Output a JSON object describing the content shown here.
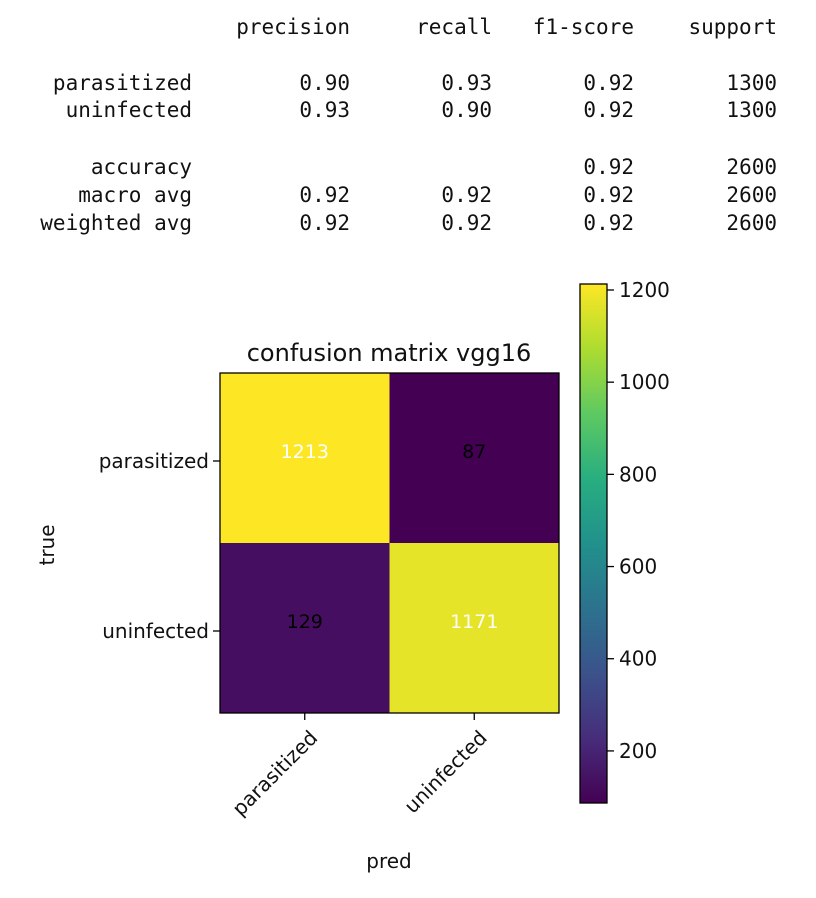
{
  "report": {
    "headers": [
      "precision",
      "recall",
      "f1-score",
      "support"
    ],
    "rows": [
      {
        "label": "parasitized",
        "values": [
          "0.90",
          "0.93",
          "0.92",
          "1300"
        ]
      },
      {
        "label": "uninfected",
        "values": [
          "0.93",
          "0.90",
          "0.92",
          "1300"
        ]
      },
      {
        "label": "accuracy",
        "values": [
          "",
          "",
          "0.92",
          "2600"
        ]
      },
      {
        "label": "macro avg",
        "values": [
          "0.92",
          "0.92",
          "0.92",
          "2600"
        ]
      },
      {
        "label": "weighted avg",
        "values": [
          "0.92",
          "0.92",
          "0.92",
          "2600"
        ]
      }
    ]
  },
  "chart_data": {
    "type": "heatmap",
    "title": "confusion matrix vgg16",
    "xlabel": "pred",
    "ylabel": "true",
    "x_categories": [
      "parasitized",
      "uninfected"
    ],
    "y_categories": [
      "parasitized",
      "uninfected"
    ],
    "values": [
      [
        1213,
        87
      ],
      [
        129,
        1171
      ]
    ],
    "colormap": "viridis",
    "colorbar": {
      "range": [
        87,
        1213
      ],
      "ticks": [
        200,
        400,
        600,
        800,
        1000,
        1200
      ]
    },
    "colors": {
      "text_on_dark": "#000000",
      "text_on_light": "#ffffff"
    }
  }
}
